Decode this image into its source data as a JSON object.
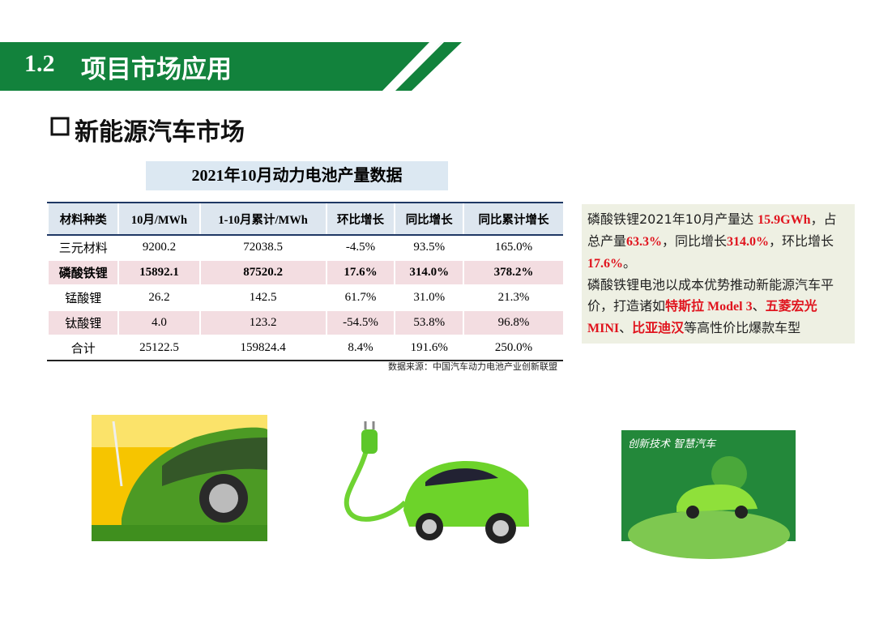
{
  "header": {
    "number": "1.2",
    "title": "项目市场应用"
  },
  "section": {
    "title": "新能源汽车市场"
  },
  "table": {
    "caption": "2021年10月动力电池产量数据",
    "columns": [
      "材料种类",
      "10月/MWh",
      "1-10月累计/MWh",
      "环比增长",
      "同比增长",
      "同比累计增长"
    ],
    "rows": [
      [
        "三元材料",
        "9200.2",
        "72038.5",
        "-4.5%",
        "93.5%",
        "165.0%"
      ],
      [
        "磷酸铁锂",
        "15892.1",
        "87520.2",
        "17.6%",
        "314.0%",
        "378.2%"
      ],
      [
        "锰酸锂",
        "26.2",
        "142.5",
        "61.7%",
        "31.0%",
        "21.3%"
      ],
      [
        "钛酸锂",
        "4.0",
        "123.2",
        "-54.5%",
        "53.8%",
        "96.8%"
      ],
      [
        "合计",
        "25122.5",
        "159824.4",
        "8.4%",
        "191.6%",
        "250.0%"
      ]
    ],
    "source": "数据来源：中国汽车动力电池产业创新联盟"
  },
  "note": {
    "paragraphs": [
      [
        {
          "text": "磷酸铁锂2021年10月产量达 "
        },
        {
          "text": "15.9GWh",
          "color": "#e0141e"
        },
        {
          "text": "，占总产量"
        },
        {
          "text": "63.3%",
          "color": "#e0141e"
        },
        {
          "text": "，同比增长"
        },
        {
          "text": "314.0%",
          "color": "#e0141e"
        },
        {
          "text": "，环比增长"
        },
        {
          "text": "17.6%",
          "color": "#e0141e"
        },
        {
          "text": "。"
        }
      ],
      [
        {
          "text": "磷酸铁锂电池以成本优势推动新能源汽车平价，打造诸如"
        },
        {
          "text": "特斯拉 Model 3",
          "color": "#e0141e"
        },
        {
          "text": "、"
        },
        {
          "text": "五菱宏光 MINI",
          "color": "#e0141e"
        },
        {
          "text": "、"
        },
        {
          "text": "比亚迪汉",
          "color": "#e0141e"
        },
        {
          "text": "等高性价比爆款车型"
        }
      ]
    ]
  }
}
